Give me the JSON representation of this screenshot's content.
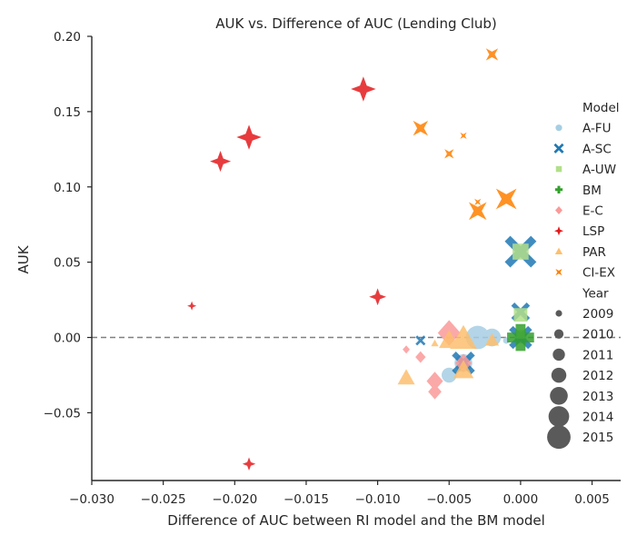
{
  "chart_data": {
    "type": "scatter",
    "title": "AUK vs. Difference of AUC (Lending Club)",
    "xlabel": "Difference of AUC between RI model and the BM model",
    "ylabel": "AUK",
    "xlim": [
      -0.03,
      0.007
    ],
    "ylim": [
      -0.095,
      0.2
    ],
    "xticks": [
      -0.03,
      -0.025,
      -0.02,
      -0.015,
      -0.01,
      -0.005,
      0.0,
      0.005
    ],
    "xtick_labels": [
      "−0.030",
      "−0.025",
      "−0.020",
      "−0.015",
      "−0.010",
      "−0.005",
      "0.000",
      "0.005"
    ],
    "yticks": [
      0.2,
      0.15,
      0.1,
      0.05,
      0.0,
      -0.05
    ],
    "ytick_labels": [
      "0.20",
      "0.15",
      "0.10",
      "0.05",
      "0.00",
      "−0.05"
    ],
    "reference_line": {
      "y": 0,
      "style": "dashed",
      "color": "#808080"
    },
    "legend": {
      "placement": "right",
      "hue_title": "Model",
      "size_title": "Year",
      "size_color": "#5a5a5a"
    },
    "series": [
      {
        "name": "A-FU",
        "color": "#a6cee3",
        "marker": "circle",
        "points": [
          [
            -0.003,
            0.0,
            2015
          ],
          [
            -0.002,
            0.0,
            2013
          ],
          [
            -0.001,
            -0.002,
            2009
          ],
          [
            -0.005,
            -0.025,
            2012
          ],
          [
            -0.004,
            -0.017,
            2013
          ],
          [
            0.0,
            0.0,
            2011
          ]
        ]
      },
      {
        "name": "A-SC",
        "color": "#1f78b4",
        "marker": "x",
        "points": [
          [
            0.0,
            0.057,
            2014
          ],
          [
            0.0,
            0.017,
            2011
          ],
          [
            0.0,
            0.0,
            2012
          ],
          [
            -0.007,
            -0.002,
            2009
          ],
          [
            -0.004,
            -0.017,
            2012
          ]
        ]
      },
      {
        "name": "A-UW",
        "color": "#b2df8a",
        "marker": "square",
        "points": [
          [
            0.0,
            0.057,
            2013
          ],
          [
            0.0,
            0.015,
            2012
          ],
          [
            0.0,
            0.002,
            2010
          ]
        ]
      },
      {
        "name": "BM",
        "color": "#33a02c",
        "marker": "plus",
        "points": [
          [
            0.0,
            0.0,
            2015
          ],
          [
            0.0,
            0.0,
            2012
          ],
          [
            0.0,
            0.002,
            2009
          ]
        ]
      },
      {
        "name": "E-C",
        "color": "#fb9a99",
        "marker": "diamond",
        "points": [
          [
            -0.005,
            0.003,
            2014
          ],
          [
            -0.006,
            -0.029,
            2012
          ],
          [
            -0.006,
            -0.036,
            2011
          ],
          [
            -0.007,
            -0.013,
            2010
          ],
          [
            -0.008,
            -0.008,
            2009
          ],
          [
            -0.004,
            -0.017,
            2012
          ]
        ]
      },
      {
        "name": "LSP",
        "color": "#e31a1c",
        "marker": "star4",
        "points": [
          [
            -0.011,
            0.165,
            2013
          ],
          [
            -0.019,
            0.133,
            2013
          ],
          [
            -0.021,
            0.117,
            2012
          ],
          [
            -0.01,
            0.027,
            2011
          ],
          [
            -0.023,
            0.021,
            2009
          ],
          [
            -0.019,
            -0.084,
            2010
          ]
        ]
      },
      {
        "name": "PAR",
        "color": "#fdbf6f",
        "marker": "triangle",
        "points": [
          [
            -0.004,
            -0.001,
            2015
          ],
          [
            -0.005,
            -0.002,
            2013
          ],
          [
            -0.008,
            -0.027,
            2012
          ],
          [
            -0.004,
            -0.022,
            2013
          ],
          [
            -0.002,
            -0.002,
            2011
          ],
          [
            -0.006,
            -0.004,
            2009
          ]
        ]
      },
      {
        "name": "CI-EX",
        "color": "#ff7f00",
        "marker": "bowtie",
        "points": [
          [
            -0.002,
            0.188,
            2011
          ],
          [
            -0.007,
            0.139,
            2012
          ],
          [
            -0.004,
            0.134,
            2009
          ],
          [
            -0.005,
            0.122,
            2010
          ],
          [
            -0.001,
            0.092,
            2014
          ],
          [
            -0.003,
            0.084,
            2013
          ],
          [
            -0.003,
            0.09,
            2009
          ]
        ]
      }
    ],
    "years": [
      "2009",
      "2010",
      "2011",
      "2012",
      "2013",
      "2014",
      "2015"
    ]
  }
}
